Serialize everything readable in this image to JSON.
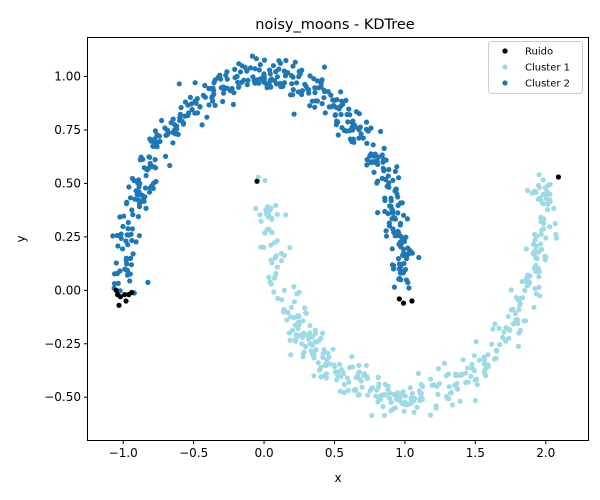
{
  "chart_data": {
    "type": "scatter",
    "title": "noisy_moons - KDTree",
    "xlabel": "x",
    "ylabel": "y",
    "xlim": [
      -1.25,
      2.3
    ],
    "ylim": [
      -0.7,
      1.18
    ],
    "xticks": [
      -1.0,
      -0.5,
      0.0,
      0.5,
      1.0,
      1.5,
      2.0
    ],
    "xtick_labels": [
      "−1.0",
      "−0.5",
      "0.0",
      "0.5",
      "1.0",
      "1.5",
      "2.0"
    ],
    "yticks": [
      -0.5,
      -0.25,
      0.0,
      0.25,
      0.5,
      0.75,
      1.0
    ],
    "ytick_labels": [
      "−0.50",
      "−0.25",
      "0.00",
      "0.25",
      "0.50",
      "0.75",
      "1.00"
    ],
    "grid": false,
    "legend_position": "top-right",
    "series": [
      {
        "name": "Ruido",
        "color": "#000000",
        "points": [
          [
            -1.04,
            -0.02
          ],
          [
            -1.02,
            -0.03
          ],
          [
            -1.03,
            -0.07
          ],
          [
            -0.98,
            -0.05
          ],
          [
            -0.99,
            -0.02
          ],
          [
            -0.96,
            -0.02
          ],
          [
            -0.94,
            -0.01
          ],
          [
            -1.05,
            0.0
          ],
          [
            -0.05,
            0.51
          ],
          [
            0.96,
            -0.04
          ],
          [
            0.99,
            -0.06
          ],
          [
            1.05,
            -0.05
          ],
          [
            2.09,
            0.53
          ]
        ]
      },
      {
        "name": "Cluster 1",
        "color": "#9ed9e6",
        "moon": {
          "cx": 1.0,
          "cy": 0.5,
          "r": 1.0,
          "start": 180,
          "end": 360,
          "n": 400,
          "noise": 0.045,
          "seed": 11
        }
      },
      {
        "name": "Cluster 2",
        "color": "#1f77b4",
        "moon": {
          "cx": 0.0,
          "cy": 0.0,
          "r": 1.0,
          "start": 2,
          "end": 178,
          "n": 460,
          "noise": 0.045,
          "seed": 7
        }
      }
    ]
  }
}
